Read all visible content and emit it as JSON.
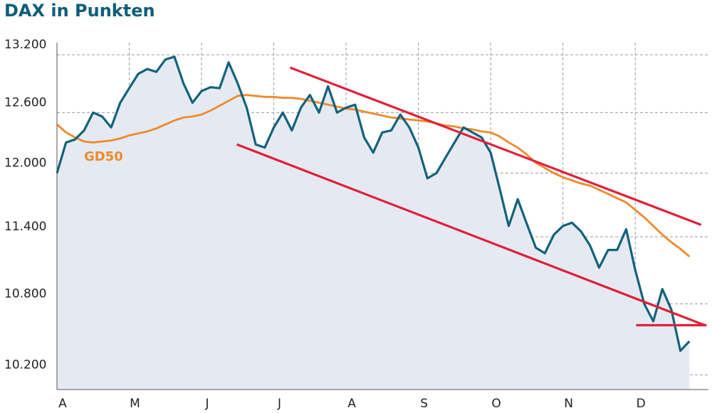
{
  "chart_data": {
    "type": "line",
    "title": "DAX in Punkten",
    "yscale": "log",
    "grid": true,
    "categories": [
      "A",
      null,
      null,
      null,
      null,
      null,
      null,
      null,
      "M",
      null,
      null,
      null,
      null,
      null,
      null,
      null,
      "J",
      null,
      null,
      null,
      null,
      null,
      null,
      null,
      "J",
      null,
      null,
      null,
      null,
      null,
      null,
      null,
      "A",
      null,
      null,
      null,
      null,
      null,
      null,
      null,
      "S",
      null,
      null,
      null,
      null,
      null,
      null,
      null,
      "O",
      null,
      null,
      null,
      null,
      null,
      null,
      null,
      "N",
      null,
      null,
      null,
      null,
      null,
      null,
      null,
      "D",
      null,
      null,
      null,
      null,
      null,
      null
    ],
    "ylim": [
      10080,
      13330
    ],
    "yticks": [
      {
        "value": 10200,
        "label": "10.200"
      },
      {
        "value": 10800,
        "label": "10.800"
      },
      {
        "value": 11400,
        "label": "11.400"
      },
      {
        "value": 12000,
        "label": "12.000"
      },
      {
        "value": 12600,
        "label": "12.600"
      },
      {
        "value": 13200,
        "label": "13.200"
      }
    ],
    "series": [
      {
        "name": "DAX",
        "color": "#13627a",
        "area_color": "#e5eaf2",
        "values": [
          12000,
          12300,
          12330,
          12420,
          12600,
          12560,
          12450,
          12700,
          12850,
          13000,
          13050,
          13020,
          13150,
          13180,
          12900,
          12700,
          12820,
          12860,
          12850,
          13120,
          12900,
          12650,
          12280,
          12250,
          12450,
          12600,
          12420,
          12650,
          12780,
          12600,
          12870,
          12600,
          12650,
          12680,
          12350,
          12200,
          12400,
          12420,
          12580,
          12450,
          12250,
          11950,
          12000,
          12150,
          12300,
          12450,
          12400,
          12350,
          12200,
          11850,
          11500,
          11750,
          11520,
          11300,
          11250,
          11420,
          11500,
          11530,
          11450,
          11320,
          11120,
          11280,
          11280,
          11470,
          11100,
          10800,
          10650,
          10930,
          10750,
          10400,
          10480
        ]
      },
      {
        "name": "GD50",
        "color": "#ee8a2b",
        "values": [
          12480,
          12400,
          12350,
          12310,
          12300,
          12310,
          12320,
          12340,
          12370,
          12390,
          12410,
          12440,
          12480,
          12520,
          12550,
          12560,
          12580,
          12620,
          12670,
          12720,
          12770,
          12780,
          12770,
          12760,
          12760,
          12750,
          12750,
          12740,
          12720,
          12700,
          12680,
          12660,
          12640,
          12630,
          12610,
          12590,
          12570,
          12550,
          12540,
          12530,
          12520,
          12510,
          12490,
          12470,
          12460,
          12440,
          12430,
          12410,
          12400,
          12360,
          12300,
          12250,
          12180,
          12100,
          12050,
          12000,
          11960,
          11930,
          11900,
          11880,
          11840,
          11800,
          11760,
          11720,
          11650,
          11580,
          11500,
          11420,
          11350,
          11290,
          11220
        ]
      }
    ],
    "trend_lines": [
      {
        "color": "#e0203a",
        "x": [
          25.8,
          71.3
        ],
        "y": [
          13065,
          11510
        ]
      },
      {
        "color": "#e0203a",
        "x": [
          19.9,
          71.7
        ],
        "y": [
          12281,
          10616
        ]
      },
      {
        "color": "#e0203a",
        "x": [
          64.1,
          71.9
        ],
        "y": [
          10616,
          10616
        ]
      }
    ]
  }
}
